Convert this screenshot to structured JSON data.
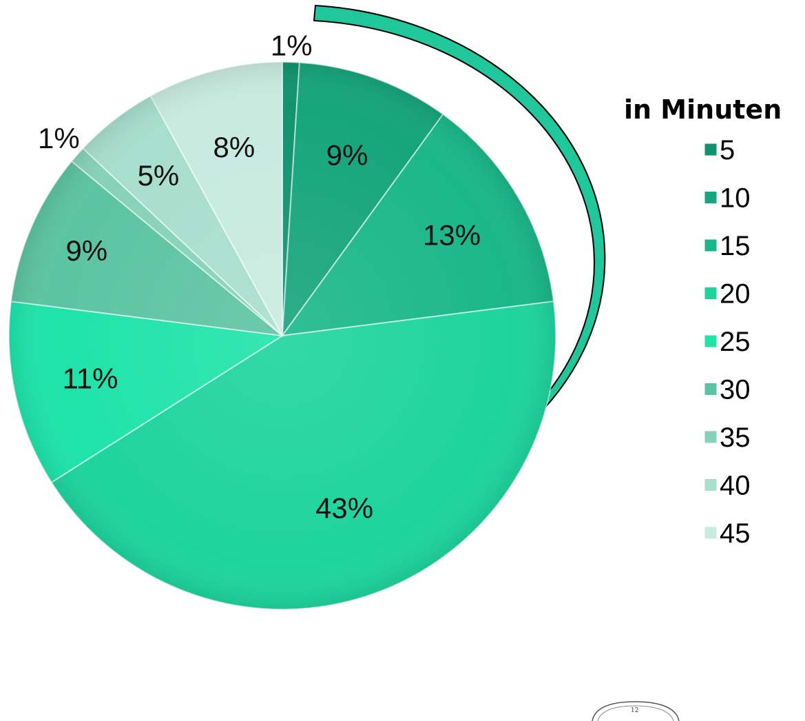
{
  "chart_data": {
    "type": "pie",
    "legend_title": "in Minuten",
    "legend_position": "right",
    "categories": [
      "5",
      "10",
      "15",
      "20",
      "25",
      "30",
      "35",
      "40",
      "45"
    ],
    "values": [
      1,
      9,
      13,
      43,
      11,
      9,
      1,
      5,
      8
    ],
    "labels": [
      "1%",
      "9%",
      "13%",
      "43%",
      "11%",
      "9%",
      "1%",
      "5%",
      "8%"
    ],
    "colors": [
      "#12936f",
      "#16a57c",
      "#1bb78a",
      "#1ed49e",
      "#1fe3aa",
      "#5cc4a2",
      "#86d2b9",
      "#a8decd",
      "#c8eadf"
    ],
    "start_angle_deg": 0,
    "direction": "clockwise"
  },
  "decoration": {
    "arrow_color": "#1fc79a",
    "clock_label": "12"
  }
}
